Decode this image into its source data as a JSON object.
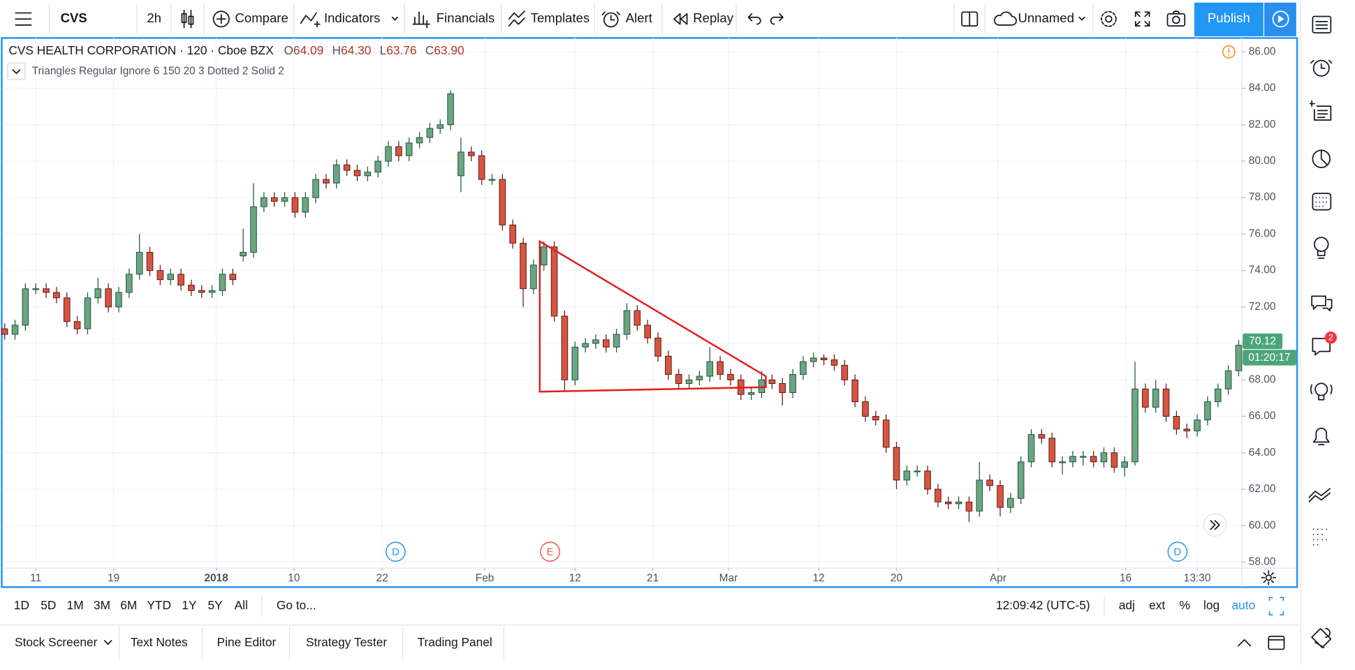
{
  "toolbar": {
    "symbol": "CVS",
    "interval": "2h",
    "compare": "Compare",
    "indicators": "Indicators",
    "financials": "Financials",
    "templates": "Templates",
    "alert": "Alert",
    "replay": "Replay",
    "layout_name": "Unnamed",
    "publish": "Publish"
  },
  "chart_data": {
    "type": "candlestick",
    "title": "CVS HEALTH CORPORATION · 120 · Cboe BZX",
    "ohlc_legend": [
      {
        "label": "O",
        "value": "64.09"
      },
      {
        "label": "H",
        "value": "64.30"
      },
      {
        "label": "L",
        "value": "63.76"
      },
      {
        "label": "C",
        "value": "63.90"
      }
    ],
    "indicator": "Triangles Regular Ignore 6 150 20 3 Dotted 2 Solid 2",
    "up_color": "#6ba583",
    "down_color": "#d75442",
    "up_border": "#225437",
    "down_border": "#5b1a13",
    "grid": true,
    "xlim": [
      -0.2,
      119.3
    ],
    "xticks": [
      {
        "value": 3,
        "label": "11"
      },
      {
        "value": 10.5,
        "label": "19"
      },
      {
        "value": 20.4,
        "label": "2018"
      },
      {
        "value": 27.9,
        "label": "10"
      },
      {
        "value": 36.4,
        "label": "22"
      },
      {
        "value": 46.3,
        "label": "Feb"
      },
      {
        "value": 55,
        "label": "12"
      },
      {
        "value": 62.5,
        "label": "21"
      },
      {
        "value": 69.8,
        "label": "Mar"
      },
      {
        "value": 78.5,
        "label": "12"
      },
      {
        "value": 86,
        "label": "20"
      },
      {
        "value": 95.8,
        "label": "Apr"
      },
      {
        "value": 108.1,
        "label": "16"
      },
      {
        "value": 115,
        "label": "13:30"
      }
    ],
    "ylim": [
      57.67,
      86.76
    ],
    "yticks": [
      {
        "value": 58,
        "label": "58.00"
      },
      {
        "value": 60,
        "label": "60.00"
      },
      {
        "value": 62,
        "label": "62.00"
      },
      {
        "value": 64,
        "label": "64.00"
      },
      {
        "value": 66,
        "label": "66.00"
      },
      {
        "value": 68,
        "label": "68.00"
      },
      {
        "value": 70,
        "label": "70.00"
      },
      {
        "value": 72,
        "label": "72.00"
      },
      {
        "value": 74,
        "label": "74.00"
      },
      {
        "value": 76,
        "label": "76.00"
      },
      {
        "value": 78,
        "label": "78.00"
      },
      {
        "value": 80,
        "label": "80.00"
      },
      {
        "value": 82,
        "label": "82.00"
      },
      {
        "value": 84,
        "label": "84.00"
      },
      {
        "value": 86,
        "label": "86.00"
      }
    ],
    "ohlc": [
      [
        70.8,
        71.1,
        70.2,
        70.5
      ],
      [
        70.5,
        71.3,
        70.2,
        71
      ],
      [
        71,
        73.3,
        70.7,
        73
      ],
      [
        73,
        73.3,
        72.7,
        73
      ],
      [
        73,
        73.3,
        72.5,
        72.8
      ],
      [
        72.8,
        73.1,
        72.2,
        72.5
      ],
      [
        72.5,
        72.8,
        70.9,
        71.2
      ],
      [
        71.2,
        71.5,
        70.5,
        70.8
      ],
      [
        70.8,
        72.8,
        70.5,
        72.5
      ],
      [
        72.5,
        73.6,
        72.2,
        73
      ],
      [
        73,
        73.3,
        71.7,
        72
      ],
      [
        72,
        73.1,
        71.7,
        72.8
      ],
      [
        72.8,
        74.1,
        72.5,
        73.8
      ],
      [
        73.8,
        76,
        73.5,
        75
      ],
      [
        75,
        75.3,
        73.7,
        74
      ],
      [
        74,
        74.3,
        73.2,
        73.5
      ],
      [
        73.5,
        74.1,
        73.2,
        73.8
      ],
      [
        73.8,
        74.1,
        72.9,
        73.2
      ],
      [
        73.2,
        73.5,
        72.6,
        72.9
      ],
      [
        72.9,
        73.2,
        72.5,
        72.8
      ],
      [
        72.8,
        73.2,
        72.5,
        72.9
      ],
      [
        72.9,
        74.1,
        72.6,
        73.8
      ],
      [
        73.8,
        74.1,
        73.2,
        73.5
      ],
      [
        74.8,
        76.3,
        74.5,
        75
      ],
      [
        75,
        78.8,
        74.7,
        77.5
      ],
      [
        77.5,
        78.3,
        77.2,
        78
      ],
      [
        78,
        78.3,
        77.5,
        77.8
      ],
      [
        77.8,
        78.3,
        77.5,
        78
      ],
      [
        78,
        78.3,
        76.9,
        77.2
      ],
      [
        77.2,
        78.3,
        76.9,
        78
      ],
      [
        78,
        79.3,
        77.7,
        79
      ],
      [
        79,
        79.3,
        78.5,
        78.8
      ],
      [
        78.8,
        80.1,
        78.5,
        79.8
      ],
      [
        79.8,
        80.1,
        79.2,
        79.5
      ],
      [
        79.5,
        79.8,
        78.9,
        79.2
      ],
      [
        79.2,
        79.7,
        78.9,
        79.4
      ],
      [
        79.4,
        80.3,
        79.1,
        80
      ],
      [
        80,
        81.1,
        79.7,
        80.8
      ],
      [
        80.8,
        81.1,
        80,
        80.3
      ],
      [
        80.3,
        81.3,
        80,
        81
      ],
      [
        81,
        81.6,
        80.7,
        81.3
      ],
      [
        81.3,
        82.1,
        81,
        81.8
      ],
      [
        81.8,
        82.3,
        81.5,
        82
      ],
      [
        82,
        83.9,
        81.7,
        83.7
      ],
      [
        79.2,
        81.3,
        78.3,
        80.5
      ],
      [
        80.5,
        80.8,
        80,
        80.3
      ],
      [
        80.3,
        80.6,
        78.7,
        79
      ],
      [
        79,
        79.3,
        78.7,
        79
      ],
      [
        79,
        79.3,
        76.2,
        76.5
      ],
      [
        76.5,
        76.8,
        75.2,
        75.5
      ],
      [
        75.5,
        75.8,
        72,
        73
      ],
      [
        73,
        74.6,
        72.7,
        74.3
      ],
      [
        74.3,
        75.6,
        74,
        75.3
      ],
      [
        75.3,
        75.6,
        71.2,
        71.5
      ],
      [
        71.5,
        71.8,
        67.4,
        68
      ],
      [
        68,
        70.1,
        67.7,
        69.8
      ],
      [
        69.8,
        70.3,
        69.5,
        70
      ],
      [
        70,
        70.5,
        69.7,
        70.2
      ],
      [
        70.2,
        70.5,
        69.5,
        69.8
      ],
      [
        69.8,
        70.8,
        69.5,
        70.5
      ],
      [
        70.5,
        72.2,
        70.2,
        71.8
      ],
      [
        71.8,
        72.1,
        70.7,
        71
      ],
      [
        71,
        71.3,
        70,
        70.3
      ],
      [
        70.3,
        70.6,
        69,
        69.3
      ],
      [
        69.3,
        69.6,
        68,
        68.3
      ],
      [
        68.3,
        68.6,
        67.5,
        67.8
      ],
      [
        67.8,
        68.3,
        67.5,
        68
      ],
      [
        68,
        68.5,
        67.7,
        68.2
      ],
      [
        68.2,
        69.8,
        67.9,
        69
      ],
      [
        69,
        69.3,
        68,
        68.3
      ],
      [
        68.3,
        68.6,
        67.7,
        68
      ],
      [
        68,
        68.3,
        66.9,
        67.2
      ],
      [
        67.2,
        67.6,
        66.9,
        67.3
      ],
      [
        67.3,
        68.5,
        67,
        68
      ],
      [
        68,
        68.3,
        67.5,
        67.8
      ],
      [
        67.8,
        68.1,
        66.6,
        67.3
      ],
      [
        67.3,
        68.6,
        67,
        68.3
      ],
      [
        68.3,
        69.3,
        68,
        69
      ],
      [
        69,
        69.5,
        68.7,
        69.2
      ],
      [
        69.2,
        69.4,
        68.8,
        69.1
      ],
      [
        69.1,
        69.4,
        68.5,
        68.8
      ],
      [
        68.8,
        69.1,
        67.7,
        68
      ],
      [
        68,
        68.3,
        66.5,
        66.8
      ],
      [
        66.8,
        67.1,
        65.7,
        66
      ],
      [
        66,
        66.3,
        65.5,
        65.8
      ],
      [
        65.8,
        66.1,
        64,
        64.3
      ],
      [
        64.3,
        64.6,
        62,
        62.5
      ],
      [
        62.5,
        63.3,
        62.2,
        63
      ],
      [
        63,
        63.3,
        62.7,
        63
      ],
      [
        63,
        63.3,
        61.7,
        62
      ],
      [
        62,
        62.3,
        61,
        61.3
      ],
      [
        61.3,
        61.6,
        60.9,
        61.2
      ],
      [
        61.2,
        61.6,
        60.9,
        61.3
      ],
      [
        61.3,
        61.6,
        60.2,
        60.8
      ],
      [
        60.8,
        63.5,
        60.5,
        62.5
      ],
      [
        62.5,
        62.8,
        61.9,
        62.2
      ],
      [
        62.2,
        62.5,
        60.5,
        61
      ],
      [
        61,
        61.8,
        60.7,
        61.5
      ],
      [
        61.5,
        63.8,
        61.2,
        63.5
      ],
      [
        63.5,
        65.3,
        63.2,
        65
      ],
      [
        65,
        65.3,
        64.5,
        64.8
      ],
      [
        64.8,
        65.1,
        63.2,
        63.5
      ],
      [
        63.5,
        63.8,
        62.8,
        63.5
      ],
      [
        63.5,
        64.1,
        63.2,
        63.8
      ],
      [
        63.8,
        64.1,
        63.3,
        63.8
      ],
      [
        63.8,
        64.1,
        63.2,
        63.5
      ],
      [
        63.5,
        64.3,
        63.2,
        64
      ],
      [
        64,
        64.3,
        62.9,
        63.2
      ],
      [
        63.2,
        63.8,
        62.7,
        63.5
      ],
      [
        63.5,
        69,
        63.3,
        67.5
      ],
      [
        67.5,
        67.8,
        66.2,
        66.5
      ],
      [
        66.5,
        68,
        66.2,
        67.5
      ],
      [
        67.5,
        67.8,
        65.7,
        66
      ],
      [
        66,
        66.3,
        65,
        65.3
      ],
      [
        65.3,
        65.6,
        64.8,
        65.2
      ],
      [
        65.2,
        66.1,
        64.9,
        65.8
      ],
      [
        65.8,
        67.1,
        65.5,
        66.8
      ],
      [
        66.8,
        67.8,
        66.5,
        67.5
      ],
      [
        67.5,
        68.8,
        67.2,
        68.5
      ],
      [
        68.5,
        70.2,
        68.2,
        69.9
      ]
    ],
    "drawing": {
      "color": "#e31c1c",
      "points": [
        [
          51.6,
          75.6
        ],
        [
          73.4,
          68.2
        ],
        [
          73.4,
          67.6
        ],
        [
          51.6,
          67.35
        ]
      ]
    },
    "events": [
      {
        "label": "D",
        "x": 37.7,
        "color": "#2196f3"
      },
      {
        "label": "E",
        "x": 52.6,
        "color": "#ef5350"
      },
      {
        "label": "D",
        "x": 113.1,
        "color": "#2196f3"
      }
    ],
    "last_price": 70.12,
    "last_price_color": "#4ca57a",
    "countdown": "01:20:17"
  },
  "range_bar": {
    "ranges": [
      "1D",
      "5D",
      "1M",
      "3M",
      "6M",
      "YTD",
      "1Y",
      "5Y",
      "All"
    ],
    "goto": "Go to...",
    "clock": "12:09:42 (UTC-5)",
    "options": [
      "adj",
      "ext",
      "%",
      "log",
      "auto"
    ]
  },
  "bottom_panel": {
    "tabs": [
      "Stock Screener",
      "Text Notes",
      "Pine Editor",
      "Strategy Tester",
      "Trading Panel"
    ]
  },
  "sidebar": {
    "badge": "2"
  }
}
